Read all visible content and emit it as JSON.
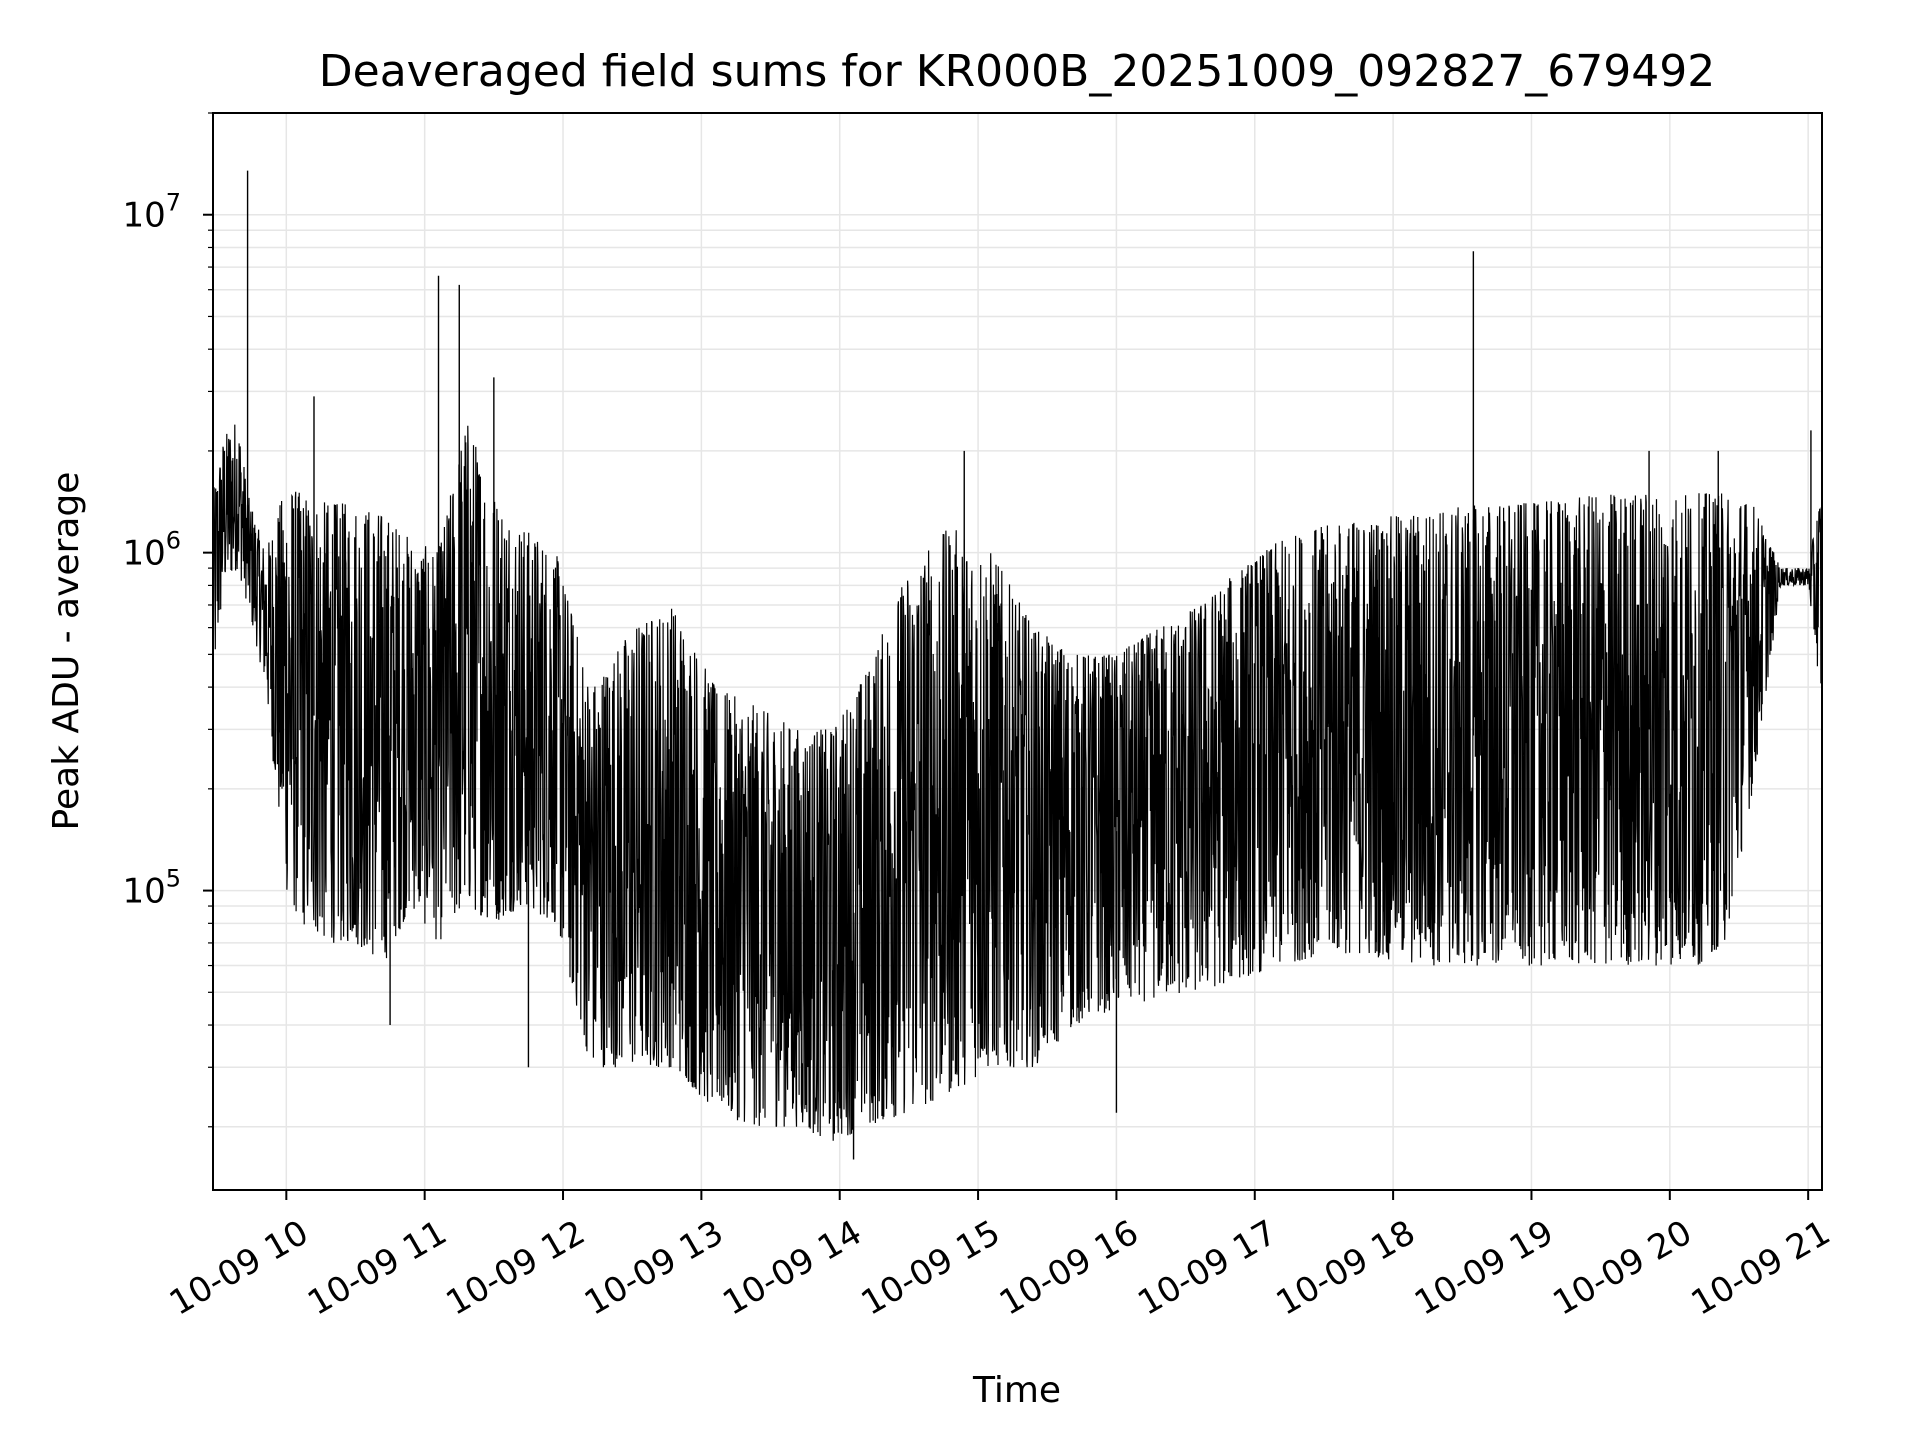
{
  "chart_data": {
    "type": "line",
    "title": "Deaveraged field sums for KR000B_20251009_092827_679492",
    "xlabel": "Time",
    "ylabel": "Peak ADU - average",
    "x_axis": {
      "type": "time",
      "range": [
        "10-09 09:28",
        "10-09 21:06"
      ],
      "ticks": [
        "10-09 10",
        "10-09 11",
        "10-09 12",
        "10-09 13",
        "10-09 14",
        "10-09 15",
        "10-09 16",
        "10-09 17",
        "10-09 18",
        "10-09 19",
        "10-09 20",
        "10-09 21"
      ]
    },
    "y_axis": {
      "scale": "log",
      "range": [
        13000,
        20000000
      ],
      "ticks": [
        {
          "base": "10",
          "exponent": "5",
          "value": 100000
        },
        {
          "base": "10",
          "exponent": "6",
          "value": 1000000
        },
        {
          "base": "10",
          "exponent": "7",
          "value": 10000000
        }
      ]
    },
    "grid": true,
    "line_color": "#000000",
    "series_envelope": {
      "x_hours": [
        9.47,
        9.55,
        9.65,
        9.72,
        9.85,
        10.0,
        10.1,
        10.3,
        10.5,
        10.7,
        10.9,
        11.1,
        11.3,
        11.5,
        11.7,
        11.95,
        12.2,
        12.5,
        12.8,
        13.1,
        13.4,
        13.7,
        13.95,
        14.2,
        14.5,
        14.8,
        15.1,
        15.4,
        15.7,
        16.0,
        16.3,
        16.6,
        16.9,
        17.2,
        17.5,
        17.8,
        18.1,
        18.4,
        18.7,
        19.0,
        19.3,
        19.6,
        19.9,
        20.2,
        20.4,
        20.6,
        20.8,
        21.0,
        21.1
      ],
      "low": [
        400000,
        800000,
        900000,
        700000,
        400000,
        100000,
        80000,
        70000,
        70000,
        60000,
        90000,
        70000,
        90000,
        80000,
        90000,
        80000,
        30000,
        30000,
        30000,
        22000,
        20000,
        20000,
        18000,
        20000,
        22000,
        25000,
        30000,
        30000,
        40000,
        45000,
        48000,
        50000,
        55000,
        60000,
        65000,
        65000,
        60000,
        60000,
        60000,
        60000,
        60000,
        60000,
        60000,
        60000,
        70000,
        200000,
        800000,
        800000,
        350000
      ],
      "high": [
        1500000,
        2200000,
        2500000,
        1500000,
        1000000,
        1600000,
        1500000,
        1400000,
        1400000,
        1300000,
        1100000,
        1000000,
        2500000,
        1500000,
        1200000,
        1000000,
        400000,
        600000,
        700000,
        400000,
        350000,
        300000,
        300000,
        450000,
        900000,
        1200000,
        1000000,
        600000,
        500000,
        500000,
        600000,
        700000,
        900000,
        1100000,
        1200000,
        1250000,
        1300000,
        1350000,
        1400000,
        1400000,
        1450000,
        1500000,
        1500000,
        1500000,
        1500000,
        1400000,
        900000,
        900000,
        1600000
      ]
    },
    "spikes": [
      {
        "x_hours": 9.72,
        "y": 13500000
      },
      {
        "x_hours": 11.1,
        "y": 6600000
      },
      {
        "x_hours": 11.25,
        "y": 6200000
      },
      {
        "x_hours": 11.5,
        "y": 3300000
      },
      {
        "x_hours": 10.2,
        "y": 2900000
      },
      {
        "x_hours": 18.58,
        "y": 7800000
      },
      {
        "x_hours": 14.9,
        "y": 2000000
      },
      {
        "x_hours": 19.85,
        "y": 2000000
      },
      {
        "x_hours": 20.35,
        "y": 2000000
      },
      {
        "x_hours": 21.02,
        "y": 2300000
      },
      {
        "x_hours": 10.75,
        "y": 40000
      },
      {
        "x_hours": 11.75,
        "y": 30000
      },
      {
        "x_hours": 14.1,
        "y": 16000
      },
      {
        "x_hours": 16.0,
        "y": 22000
      }
    ]
  }
}
